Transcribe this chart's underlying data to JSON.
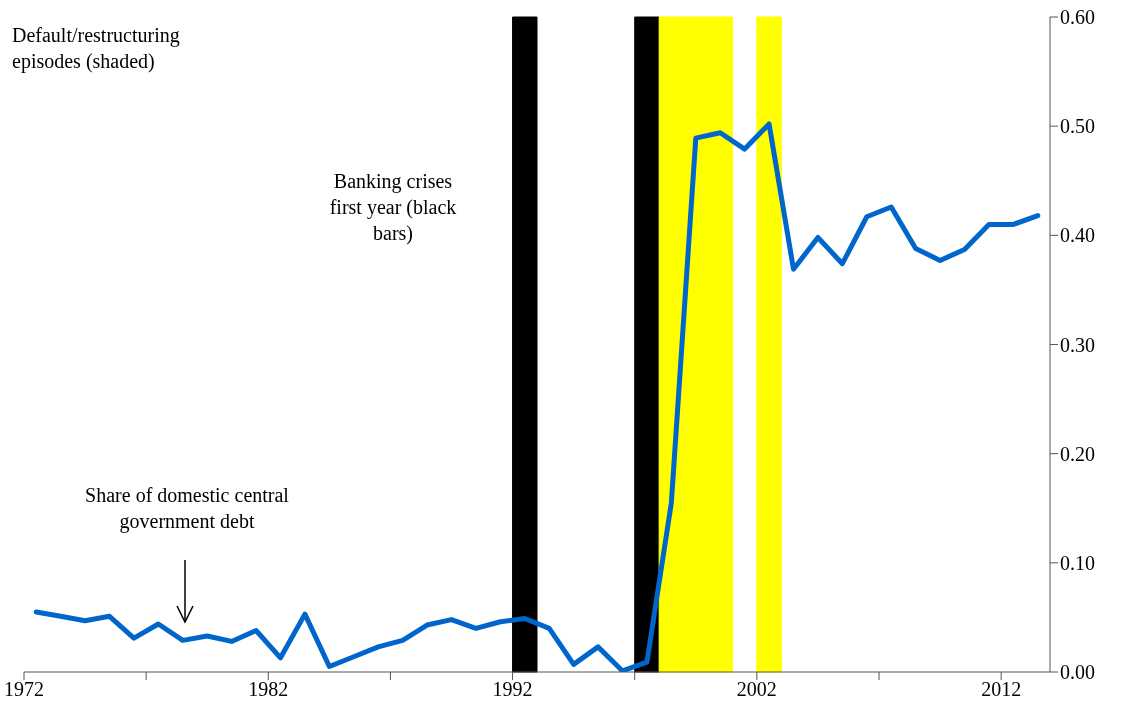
{
  "chart_data": {
    "type": "line",
    "x": [
      1972.5,
      1973.5,
      1974.5,
      1975.5,
      1976.5,
      1977.5,
      1978.5,
      1979.5,
      1980.5,
      1981.5,
      1982.5,
      1983.5,
      1984.5,
      1985.5,
      1986.5,
      1987.5,
      1988.5,
      1989.5,
      1990.5,
      1991.5,
      1992.5,
      1993.5,
      1994.5,
      1995.5,
      1996.5,
      1997.5,
      1998.5,
      1999.5,
      2000.5,
      2001.5,
      2002.5,
      2003.5,
      2004.5,
      2005.5,
      2006.5,
      2007.5,
      2008.5,
      2009.5,
      2010.5,
      2011.5,
      2012.5,
      2013.5
    ],
    "series": [
      {
        "color": "#0066cc",
        "values": [
          0.055,
          0.051,
          0.047,
          0.051,
          0.031,
          0.044,
          0.029,
          0.033,
          0.028,
          0.038,
          0.013,
          0.053,
          0.005,
          0.014,
          0.023,
          0.029,
          0.043,
          0.048,
          0.04,
          0.046,
          0.049,
          0.04,
          0.007,
          0.023,
          0.001,
          0.009,
          0.155,
          0.489,
          0.494,
          0.479,
          0.502,
          0.369,
          0.398,
          0.374,
          0.417,
          0.426,
          0.388,
          0.377,
          0.387,
          0.41,
          0.41,
          0.418
        ]
      }
    ],
    "xlim": [
      1972,
      2014
    ],
    "xticks": [
      1972,
      {
        "value": 1977,
        "label": null
      },
      1982,
      {
        "value": 1987,
        "label": null
      },
      1992,
      {
        "value": 1997,
        "label": null
      },
      2002,
      {
        "value": 2007,
        "label": null
      },
      2012
    ],
    "ylim": [
      0,
      0.6
    ],
    "yticks": [
      {
        "value": 0,
        "label": "0.00"
      },
      {
        "value": 0.1,
        "label": "0.10"
      },
      {
        "value": 0.2,
        "label": "0.20"
      },
      {
        "value": 0.3,
        "label": "0.30"
      },
      {
        "value": 0.4,
        "label": "0.40"
      },
      {
        "value": 0.5,
        "label": "0.50"
      },
      {
        "value": 0.6,
        "label": "0.60"
      }
    ],
    "bands": [
      {
        "axis": "x",
        "from": 1992,
        "to": 1993,
        "color": "#000000"
      },
      {
        "axis": "x",
        "from": 1997,
        "to": 1998,
        "color": "#000000"
      },
      {
        "axis": "x",
        "from": 1998,
        "to": 2001,
        "color": "#ffff00"
      },
      {
        "axis": "x",
        "from": 2002,
        "to": 2003,
        "color": "#ffff00"
      }
    ],
    "annotations": [
      "Default/restructuring episodes (shaded)",
      "Banking crises first year (black bars)",
      "Share of domestic central government debt"
    ],
    "grid": false,
    "legend": false,
    "marker": "none",
    "line_style": "solid"
  }
}
